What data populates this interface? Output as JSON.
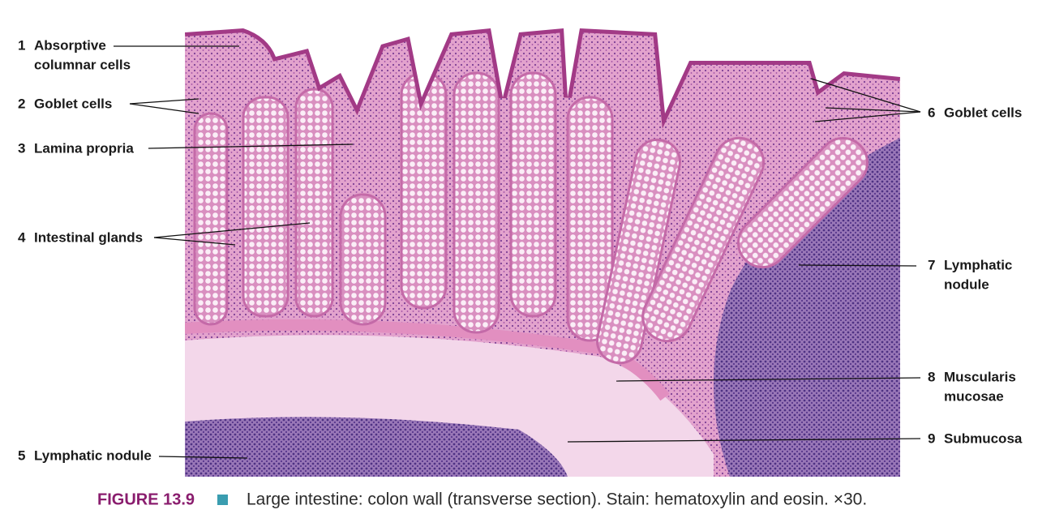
{
  "figure": {
    "labels": [
      {
        "number": 1,
        "lines": [
          "Absorptive",
          "columnar cells"
        ]
      },
      {
        "number": 2,
        "lines": [
          "Goblet cells"
        ]
      },
      {
        "number": 3,
        "lines": [
          "Lamina propria"
        ]
      },
      {
        "number": 4,
        "lines": [
          "Intestinal glands"
        ]
      },
      {
        "number": 5,
        "lines": [
          "Lymphatic nodule"
        ]
      },
      {
        "number": 6,
        "lines": [
          "Goblet cells"
        ]
      },
      {
        "number": 7,
        "lines": [
          "Lymphatic",
          "nodule"
        ]
      },
      {
        "number": 8,
        "lines": [
          "Muscularis",
          "mucosae"
        ]
      },
      {
        "number": 9,
        "lines": [
          "Submucosa"
        ]
      }
    ],
    "caption": {
      "figure": "FIGURE 13.9",
      "text": "Large intestine: colon wall (transverse section). Stain: hematoxylin and eosin. ×30."
    }
  }
}
